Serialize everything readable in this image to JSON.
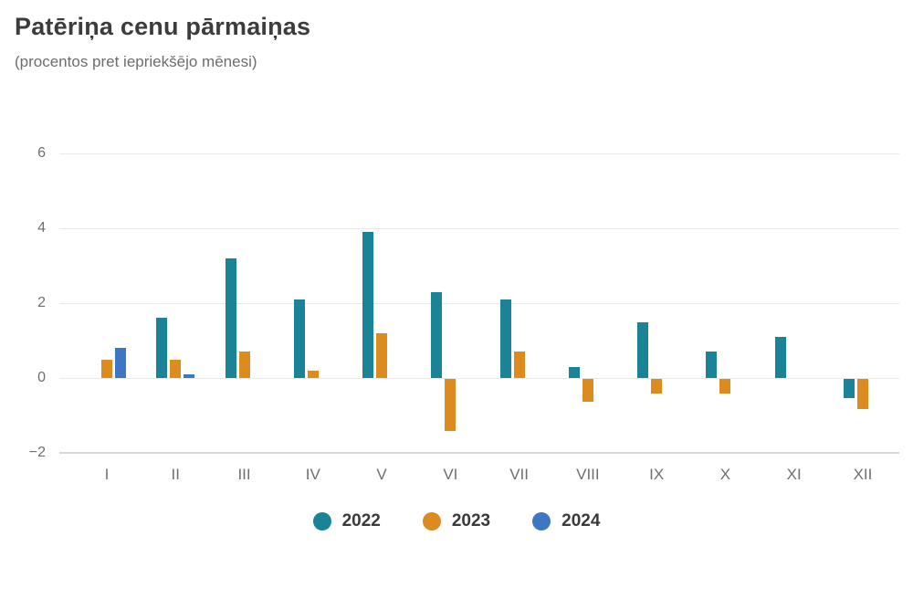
{
  "header": {
    "title": "Patēriņa cenu pārmaiņas",
    "subtitle": "(procentos pret iepriekšējo mēnesi)"
  },
  "chart_data": {
    "type": "bar",
    "title": "Patēriņa cenu pārmaiņas",
    "subtitle": "(procentos pret iepriekšējo mēnesi)",
    "categories": [
      "I",
      "II",
      "III",
      "IV",
      "V",
      "VI",
      "VII",
      "VIII",
      "IX",
      "X",
      "XI",
      "XII"
    ],
    "series": [
      {
        "name": "2022",
        "color": "#1b8397",
        "values": [
          null,
          1.6,
          3.2,
          2.1,
          3.9,
          2.3,
          2.1,
          0.3,
          1.5,
          0.7,
          1.1,
          -0.5
        ]
      },
      {
        "name": "2023",
        "color": "#dc8b1f",
        "values": [
          0.5,
          0.5,
          0.7,
          0.2,
          1.2,
          -1.4,
          0.7,
          -0.6,
          -0.4,
          -0.4,
          null,
          -0.8
        ]
      },
      {
        "name": "2024",
        "color": "#3d77c3",
        "values": [
          0.8,
          0.1,
          null,
          null,
          null,
          null,
          null,
          null,
          null,
          null,
          null,
          null
        ]
      }
    ],
    "yticks": [
      6,
      4,
      2,
      0,
      -2
    ],
    "ylim": [
      -2,
      7.2
    ],
    "xlabel": "",
    "ylabel": "",
    "grid": true,
    "legend_position": "bottom"
  },
  "colors": {
    "background": "#ffffff",
    "gridline": "#e9e9e9",
    "axis_line": "#d4d9dd",
    "tick_text": "#6f6f6f",
    "title_text": "#3c3c3c",
    "subtitle_text": "#6d6d6d",
    "legend_text": "#3a3a3a"
  }
}
